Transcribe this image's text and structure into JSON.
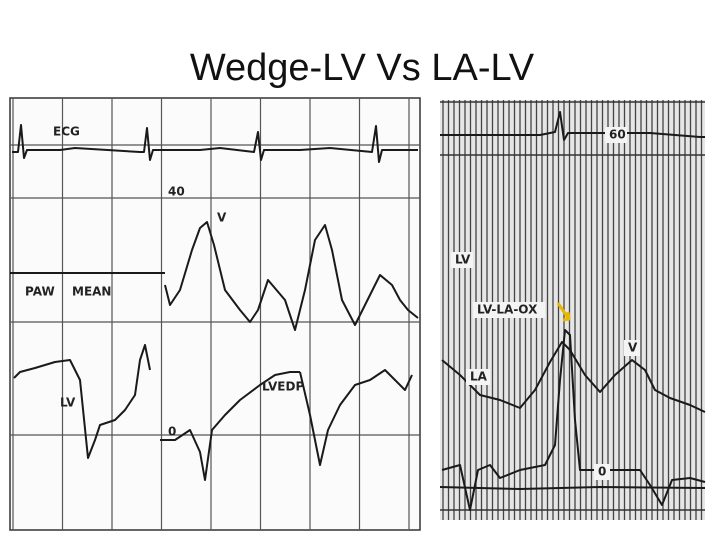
{
  "title": "Wedge-LV Vs LA-LV",
  "left_panel": {
    "labels": [
      "ECG",
      "40",
      "V",
      "PAW",
      "MEAN",
      "LV",
      "LVEDP",
      "0"
    ]
  },
  "right_panel": {
    "labels": [
      "60",
      "LV",
      "LV-LA-OX",
      "V",
      "LA",
      "0"
    ]
  }
}
